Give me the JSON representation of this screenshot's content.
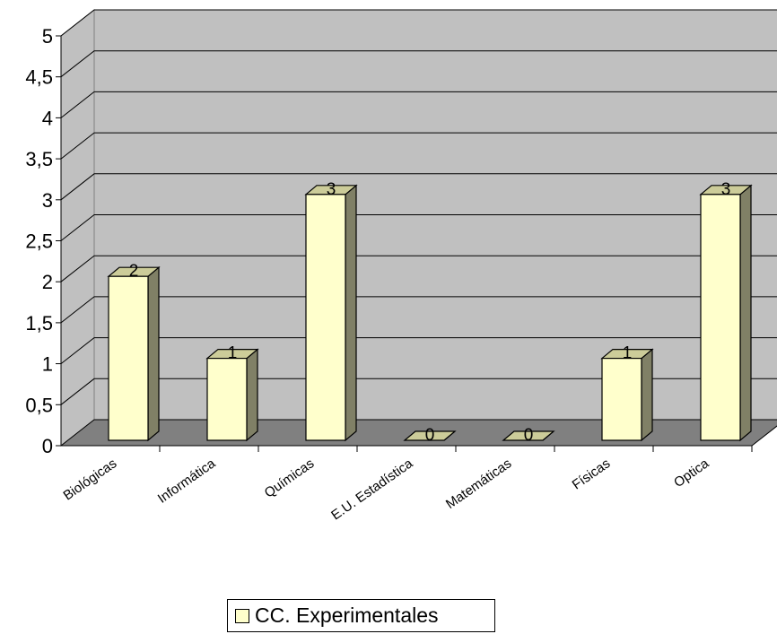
{
  "chart_data": {
    "type": "bar",
    "style": "3d-column",
    "categories": [
      "Biológicas",
      "Informática",
      "Químicas",
      "E.U. Estadística",
      "Matemáticas",
      "Físicas",
      "Optica"
    ],
    "series": [
      {
        "name": "CC. Experimentales",
        "values": [
          2,
          1,
          3,
          0,
          0,
          1,
          3
        ]
      }
    ],
    "data_labels": [
      "2",
      "1",
      "3",
      "0",
      "0",
      "1",
      "3"
    ],
    "y_ticks": [
      "0",
      "0,5",
      "1",
      "1,5",
      "2",
      "2,5",
      "3",
      "3,5",
      "4",
      "4,5",
      "5"
    ],
    "ylim": [
      0,
      5
    ],
    "grid": true,
    "legend_position": "bottom",
    "colors": {
      "bar_front": "#ffffcc",
      "bar_side": "#808066",
      "bar_top": "#cccc99",
      "back_wall": "#c0c0c0",
      "side_wall": "#c0c0c0",
      "floor": "#808080"
    }
  }
}
